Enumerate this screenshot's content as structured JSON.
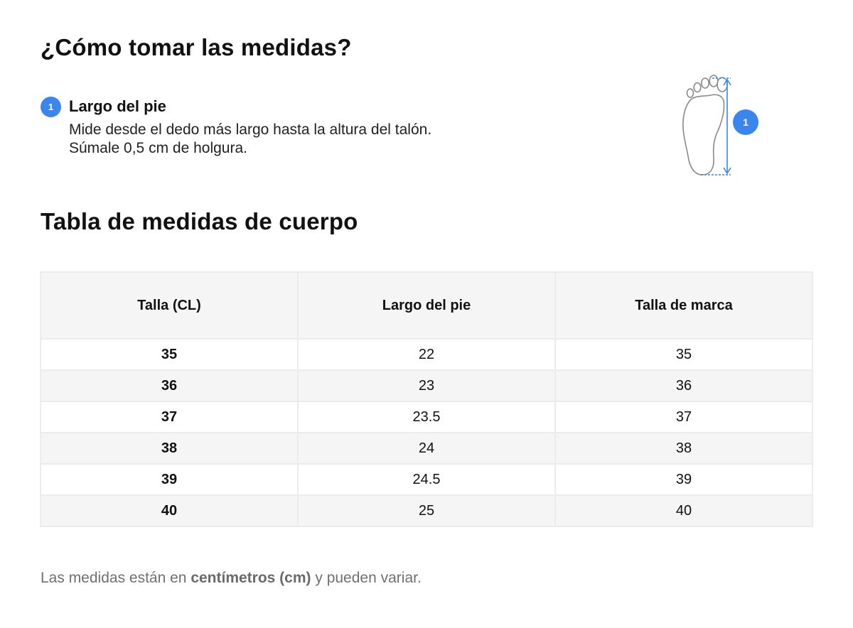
{
  "header": {
    "title": "¿Cómo tomar las medidas?"
  },
  "step": {
    "number": "1",
    "title": "Largo del pie",
    "description": "Mide desde el dedo más largo hasta la altura del talón. Súmale 0,5 cm de holgura."
  },
  "illustration": {
    "icon": "foot-outline-icon",
    "badge": "1",
    "accent_color": "#3a86ee"
  },
  "section": {
    "title": "Tabla de medidas de cuerpo"
  },
  "table": {
    "columns": [
      "Talla (CL)",
      "Largo del pie",
      "Talla de marca"
    ],
    "rows": [
      [
        "35",
        "22",
        "35"
      ],
      [
        "36",
        "23",
        "36"
      ],
      [
        "37",
        "23.5",
        "37"
      ],
      [
        "38",
        "24",
        "38"
      ],
      [
        "39",
        "24.5",
        "39"
      ],
      [
        "40",
        "25",
        "40"
      ]
    ]
  },
  "note": {
    "prefix": "Las medidas están en ",
    "emphasis": "centímetros (cm)",
    "suffix": " y pueden variar."
  }
}
